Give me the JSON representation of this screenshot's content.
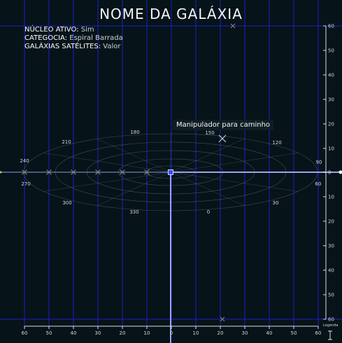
{
  "title": "NOME DA GALÁXIA",
  "info": [
    {
      "key": "NÚCLEO ATIVO:",
      "value": "Sim"
    },
    {
      "key": "CATEGOCIA:",
      "value": "Espiral Barrada"
    },
    {
      "key": "GALÁXIAS SATÉLITES:",
      "value": "Valor"
    }
  ],
  "tooltip": "Manipulador para caminho",
  "legend_label": "Legenda",
  "bottom_axis": [
    "60",
    "50",
    "40",
    "30",
    "20",
    "10",
    "0",
    "10",
    "20",
    "30",
    "40",
    "50",
    "60"
  ],
  "right_axis": [
    "60",
    "50",
    "40",
    "30",
    "20",
    "10",
    "0",
    "10",
    "20",
    "30",
    "40",
    "50",
    "60"
  ],
  "angle_labels": [
    "0",
    "30",
    "60",
    "90",
    "120",
    "150",
    "180",
    "210",
    "240",
    "270",
    "300",
    "330"
  ],
  "colors": {
    "background": "#061318",
    "grid": "#1a22c8",
    "axis": "#8d97ee",
    "rings": "#5a6a70",
    "marker": "#8a8f5a"
  },
  "icons": {
    "marker": "x-marker-icon",
    "center": "center-square-icon",
    "legend": "legend-handle-icon"
  }
}
